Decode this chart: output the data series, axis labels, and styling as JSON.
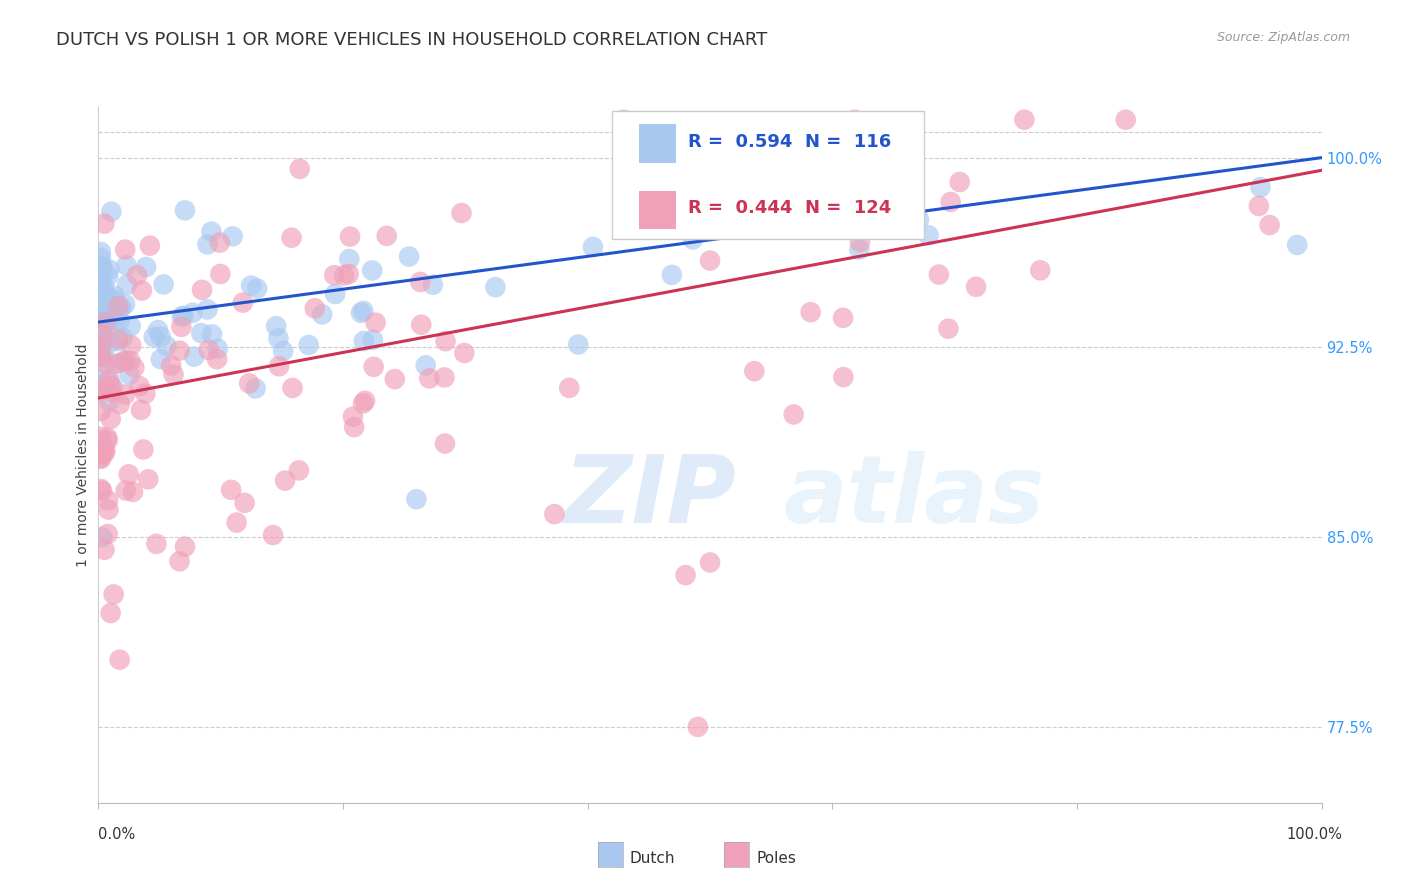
{
  "title": "DUTCH VS POLISH 1 OR MORE VEHICLES IN HOUSEHOLD CORRELATION CHART",
  "source_text": "Source: ZipAtlas.com",
  "ylabel": "1 or more Vehicles in Household",
  "xlim": [
    0.0,
    100.0
  ],
  "ylim": [
    74.5,
    102.0
  ],
  "yticks": [
    77.5,
    85.0,
    92.5,
    100.0
  ],
  "ytick_labels": [
    "77.5%",
    "85.0%",
    "92.5%",
    "100.0%"
  ],
  "dutch_color": "#A8C8F0",
  "poles_color": "#F0A0B8",
  "blue_line_color": "#2255CC",
  "pink_line_color": "#CC3355",
  "legend_R_dutch": "0.594",
  "legend_N_dutch": "116",
  "legend_R_poles": "0.444",
  "legend_N_poles": "124",
  "title_fontsize": 13,
  "axis_label_fontsize": 10,
  "tick_fontsize": 10.5,
  "legend_fontsize": 13,
  "dutch_trend_y0": 93.5,
  "dutch_trend_y1": 100.0,
  "poles_trend_y0": 90.5,
  "poles_trend_y1": 99.5
}
